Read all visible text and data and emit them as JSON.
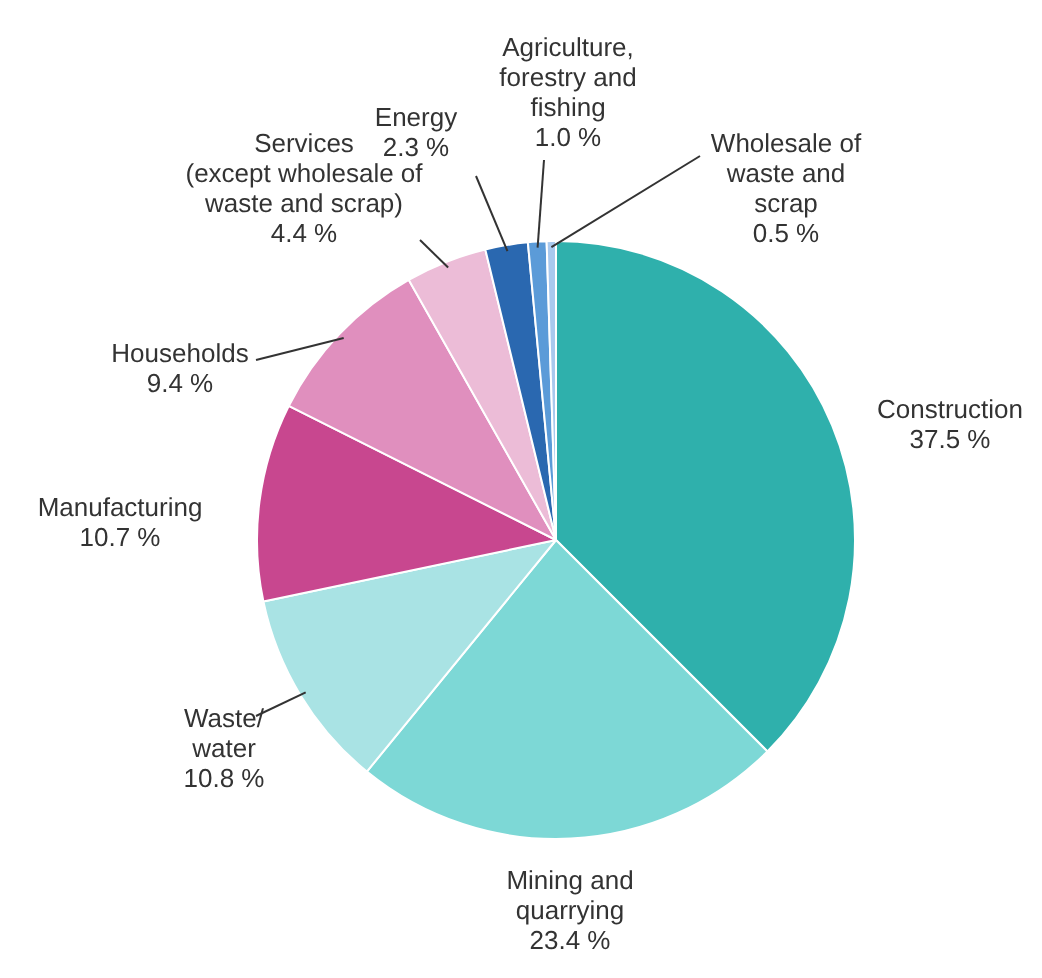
{
  "chart_data": {
    "type": "pie",
    "categories": [
      "Construction",
      "Mining and\nquarrying",
      "Waste/\nwater",
      "Manufacturing",
      "Households",
      "Services\n(except wholesale of\nwaste and scrap)",
      "Energy",
      "Agriculture,\nforestry and\nfishing",
      "Wholesale of\nwaste and\nscrap"
    ],
    "values": [
      37.5,
      23.4,
      10.8,
      10.7,
      9.4,
      4.4,
      2.3,
      1.0,
      0.5
    ],
    "value_labels": [
      "37.5 %",
      "23.4 %",
      "10.8 %",
      "10.7 %",
      "9.4 %",
      "4.4 %",
      "2.3 %",
      "1.0 %",
      "0.5 %"
    ],
    "colors": [
      "#2fb0ac",
      "#7dd8d6",
      "#a9e3e4",
      "#c8478f",
      "#e08fbe",
      "#ecbcd7",
      "#2a68b0",
      "#5b9bd8",
      "#a9c9ee"
    ],
    "legend": false
  }
}
